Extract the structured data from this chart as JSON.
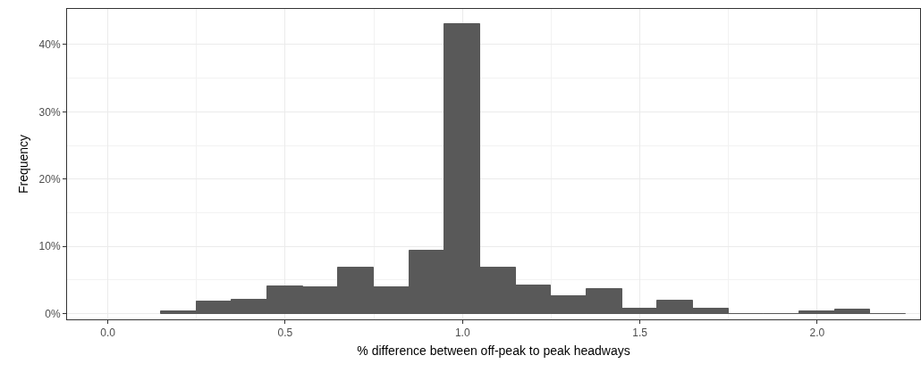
{
  "chart_data": {
    "type": "histogram",
    "xlabel": "% difference between off-peak to peak headways",
    "ylabel": "Frequency",
    "bins": [
      0.15,
      0.25,
      0.35,
      0.45,
      0.55,
      0.65,
      0.75,
      0.85,
      0.95,
      1.05,
      1.15,
      1.25,
      1.35,
      1.45,
      1.55,
      1.65,
      1.75,
      1.85,
      1.95,
      2.05,
      2.15,
      2.25
    ],
    "values": [
      0.4,
      1.8,
      2.1,
      4.0,
      3.9,
      6.8,
      3.9,
      9.3,
      43.1,
      6.8,
      4.2,
      2.6,
      3.6,
      0.8,
      1.9,
      0.8,
      0,
      0,
      0.4,
      0.6,
      0
    ],
    "color": "#595959",
    "xlim": [
      -0.115,
      2.29
    ],
    "xticks": [
      {
        "value": 0,
        "label": "0.0"
      },
      0.5,
      {
        "value": 1,
        "label": "1.0"
      },
      1.5,
      {
        "value": 2,
        "label": "2.0"
      }
    ],
    "ylim": [
      -0.85,
      45.3
    ],
    "yticks": [
      {
        "value": 0,
        "label": "0%"
      },
      {
        "value": 10,
        "label": "10%"
      },
      {
        "value": 20,
        "label": "20%"
      },
      {
        "value": 30,
        "label": "30%"
      },
      {
        "value": 40,
        "label": "40%"
      }
    ],
    "grid": true
  }
}
